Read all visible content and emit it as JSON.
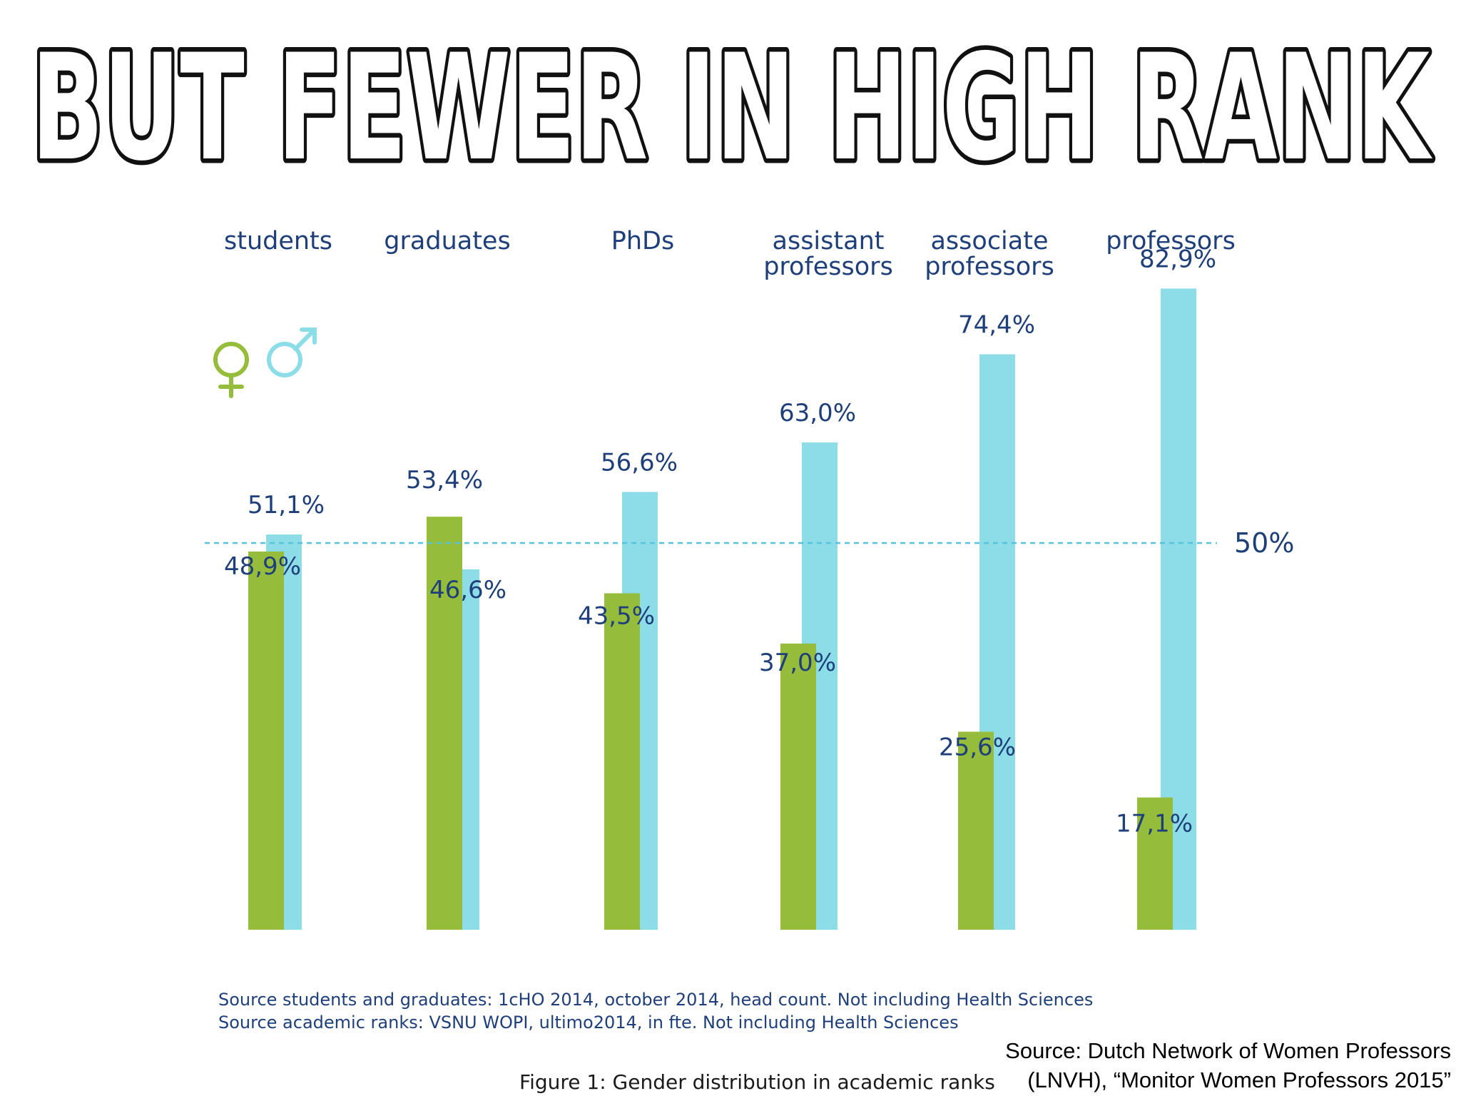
{
  "headline": "BUT FEWER IN HIGH RANK",
  "colors": {
    "female": "#95bd3b",
    "male": "#8cdde8",
    "label_text": "#1f3f7a",
    "reference_line": "#56c3dd"
  },
  "icons": {
    "female": "female-symbol-icon",
    "male": "male-symbol-icon"
  },
  "chart_data": {
    "type": "bar",
    "title": "Figure 1: Gender distribution in academic ranks",
    "categories": [
      "students",
      "graduates",
      "PhDs",
      "assistant\nprofessors",
      "associate\nprofessors",
      "professors"
    ],
    "series": [
      {
        "values": [
          48.9,
          53.4,
          43.5,
          37.0,
          25.6,
          17.1
        ],
        "labels": [
          "48,9%",
          "53,4%",
          "43,5%",
          "37,0%",
          "25,6%",
          "17,1%"
        ]
      },
      {
        "values": [
          51.1,
          46.6,
          56.6,
          63.0,
          74.4,
          82.9
        ],
        "labels": [
          "51,1%",
          "46,6%",
          "56,6%",
          "63,0%",
          "74,4%",
          "82,9%"
        ]
      }
    ],
    "reference_line": {
      "value": 50,
      "label": "50%"
    },
    "ylim": [
      0,
      100
    ],
    "grid": false,
    "legend": "top-left"
  },
  "sources": [
    "Source students and graduates: 1cHO 2014, october 2014, head count. Not including Health Sciences",
    "Source academic ranks: VSNU WOPI, ultimo2014, in fte. Not including Health Sciences"
  ],
  "credit": {
    "line1": "Source: Dutch Network of Women Professors",
    "line2": "(LNVH), “Monitor Women Professors 2015”"
  }
}
